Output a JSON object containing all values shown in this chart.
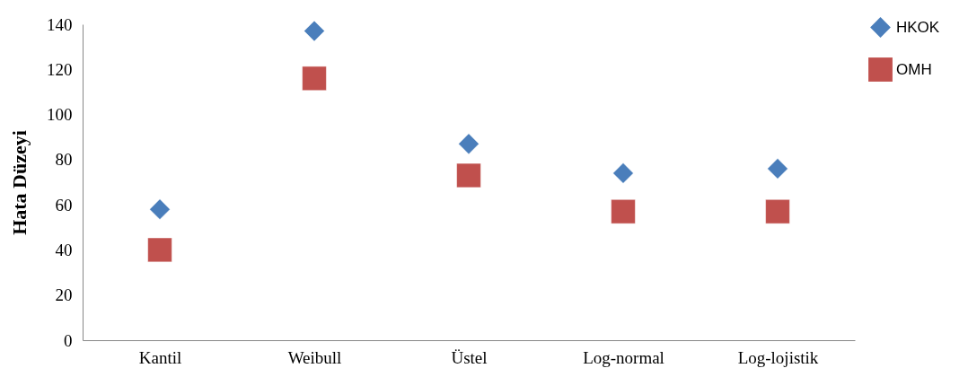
{
  "chart_data": {
    "type": "scatter",
    "ylabel": "Hata Düzeyi",
    "categories": [
      "Kantil",
      "Weibull",
      "Üstel",
      "Log-normal",
      "Log-lojistik"
    ],
    "series": [
      {
        "name": "HKOK",
        "color": "#4a7ebb",
        "marker": "diamond",
        "values": [
          58,
          137,
          87,
          74,
          76
        ]
      },
      {
        "name": "OMH",
        "color": "#c0504d",
        "marker": "square",
        "values": [
          40,
          116,
          73,
          57,
          57
        ]
      }
    ],
    "ylim": [
      0,
      140
    ],
    "yticks": [
      0,
      20,
      40,
      60,
      80,
      100,
      120,
      140
    ],
    "grid": false,
    "legend": "top right"
  }
}
